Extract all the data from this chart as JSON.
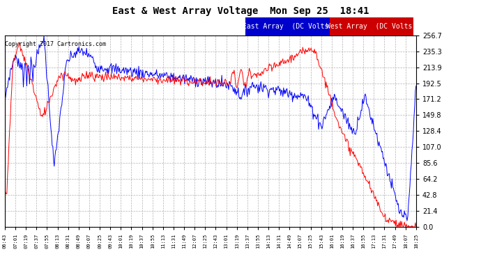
{
  "title": "East & West Array Voltage  Mon Sep 25  18:41",
  "copyright_text": "Copyright 2017 Cartronics.com",
  "east_legend": "East Array  (DC Volts)",
  "west_legend": "West Array  (DC Volts)",
  "east_color": "#0000ff",
  "west_color": "#ff0000",
  "east_legend_bg": "#0000cc",
  "west_legend_bg": "#cc0000",
  "legend_text_color": "#ffffff",
  "plot_bg_color": "#ffffff",
  "grid_color": "#aaaaaa",
  "title_color": "#000000",
  "outer_bg": "#ffffff",
  "border_color": "#000000",
  "ylim": [
    0.0,
    256.7
  ],
  "yticks": [
    0.0,
    21.4,
    42.8,
    64.2,
    85.6,
    107.0,
    128.4,
    149.8,
    171.2,
    192.5,
    213.9,
    235.3,
    256.7
  ],
  "xtick_labels": [
    "06:43",
    "07:01",
    "07:19",
    "07:37",
    "07:55",
    "08:13",
    "08:31",
    "08:49",
    "09:07",
    "09:25",
    "09:43",
    "10:01",
    "10:19",
    "10:37",
    "10:55",
    "11:13",
    "11:31",
    "11:49",
    "12:07",
    "12:25",
    "12:43",
    "13:01",
    "13:19",
    "13:37",
    "13:55",
    "14:13",
    "14:31",
    "14:49",
    "15:07",
    "15:25",
    "15:43",
    "16:01",
    "16:19",
    "16:37",
    "16:55",
    "17:13",
    "17:31",
    "17:49",
    "18:07",
    "18:25"
  ],
  "n_points": 600,
  "title_fontsize": 10,
  "copyright_fontsize": 6,
  "legend_fontsize": 7,
  "ytick_fontsize": 7,
  "xtick_fontsize": 5
}
